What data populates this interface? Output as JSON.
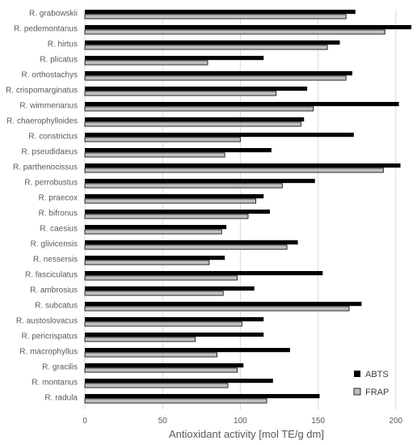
{
  "chart_data": {
    "type": "bar",
    "orientation": "horizontal",
    "title": "",
    "xlabel": "Antioxidant activity [mol TE/g dm]",
    "ylabel": "",
    "xlim": [
      0,
      210
    ],
    "xticks": [
      0,
      50,
      100,
      150,
      200
    ],
    "grid": true,
    "legend_position": "bottom-right",
    "categories": [
      "R. grabowskii",
      "R. pedemontanus",
      "R. hirtus",
      "R. plicatus",
      "R. orthostachys",
      "R. crispomarginatus",
      "R. wimmerianus",
      "R. chaerophylloides",
      "R. constrictus",
      "R. pseudidaeus",
      "R. parthenocissus",
      "R. perrobustus",
      "R. praecox",
      "R. bifronus",
      "R. caesius",
      "R. glivicensis",
      "R. nessersis",
      "R. fasciculatus",
      "R. ambrosius",
      "R. subcatus",
      "R. austoslovacus",
      "R. pericrispatus",
      "R. macrophyllus",
      "R. gracilis",
      "R. montanus",
      "R. radula"
    ],
    "series": [
      {
        "name": "ABTS",
        "color": "#000000",
        "values": [
          174,
          210,
          164,
          115,
          172,
          143,
          202,
          141,
          173,
          120,
          203,
          148,
          115,
          119,
          91,
          137,
          90,
          153,
          109,
          178,
          115,
          115,
          132,
          102,
          121,
          151
        ]
      },
      {
        "name": "FRAP",
        "color": "#bfbfbf",
        "values": [
          168,
          193,
          156,
          79,
          168,
          123,
          147,
          139,
          100,
          90,
          192,
          127,
          110,
          105,
          88,
          130,
          80,
          98,
          89,
          170,
          101,
          71,
          85,
          98,
          92,
          117
        ]
      }
    ]
  }
}
